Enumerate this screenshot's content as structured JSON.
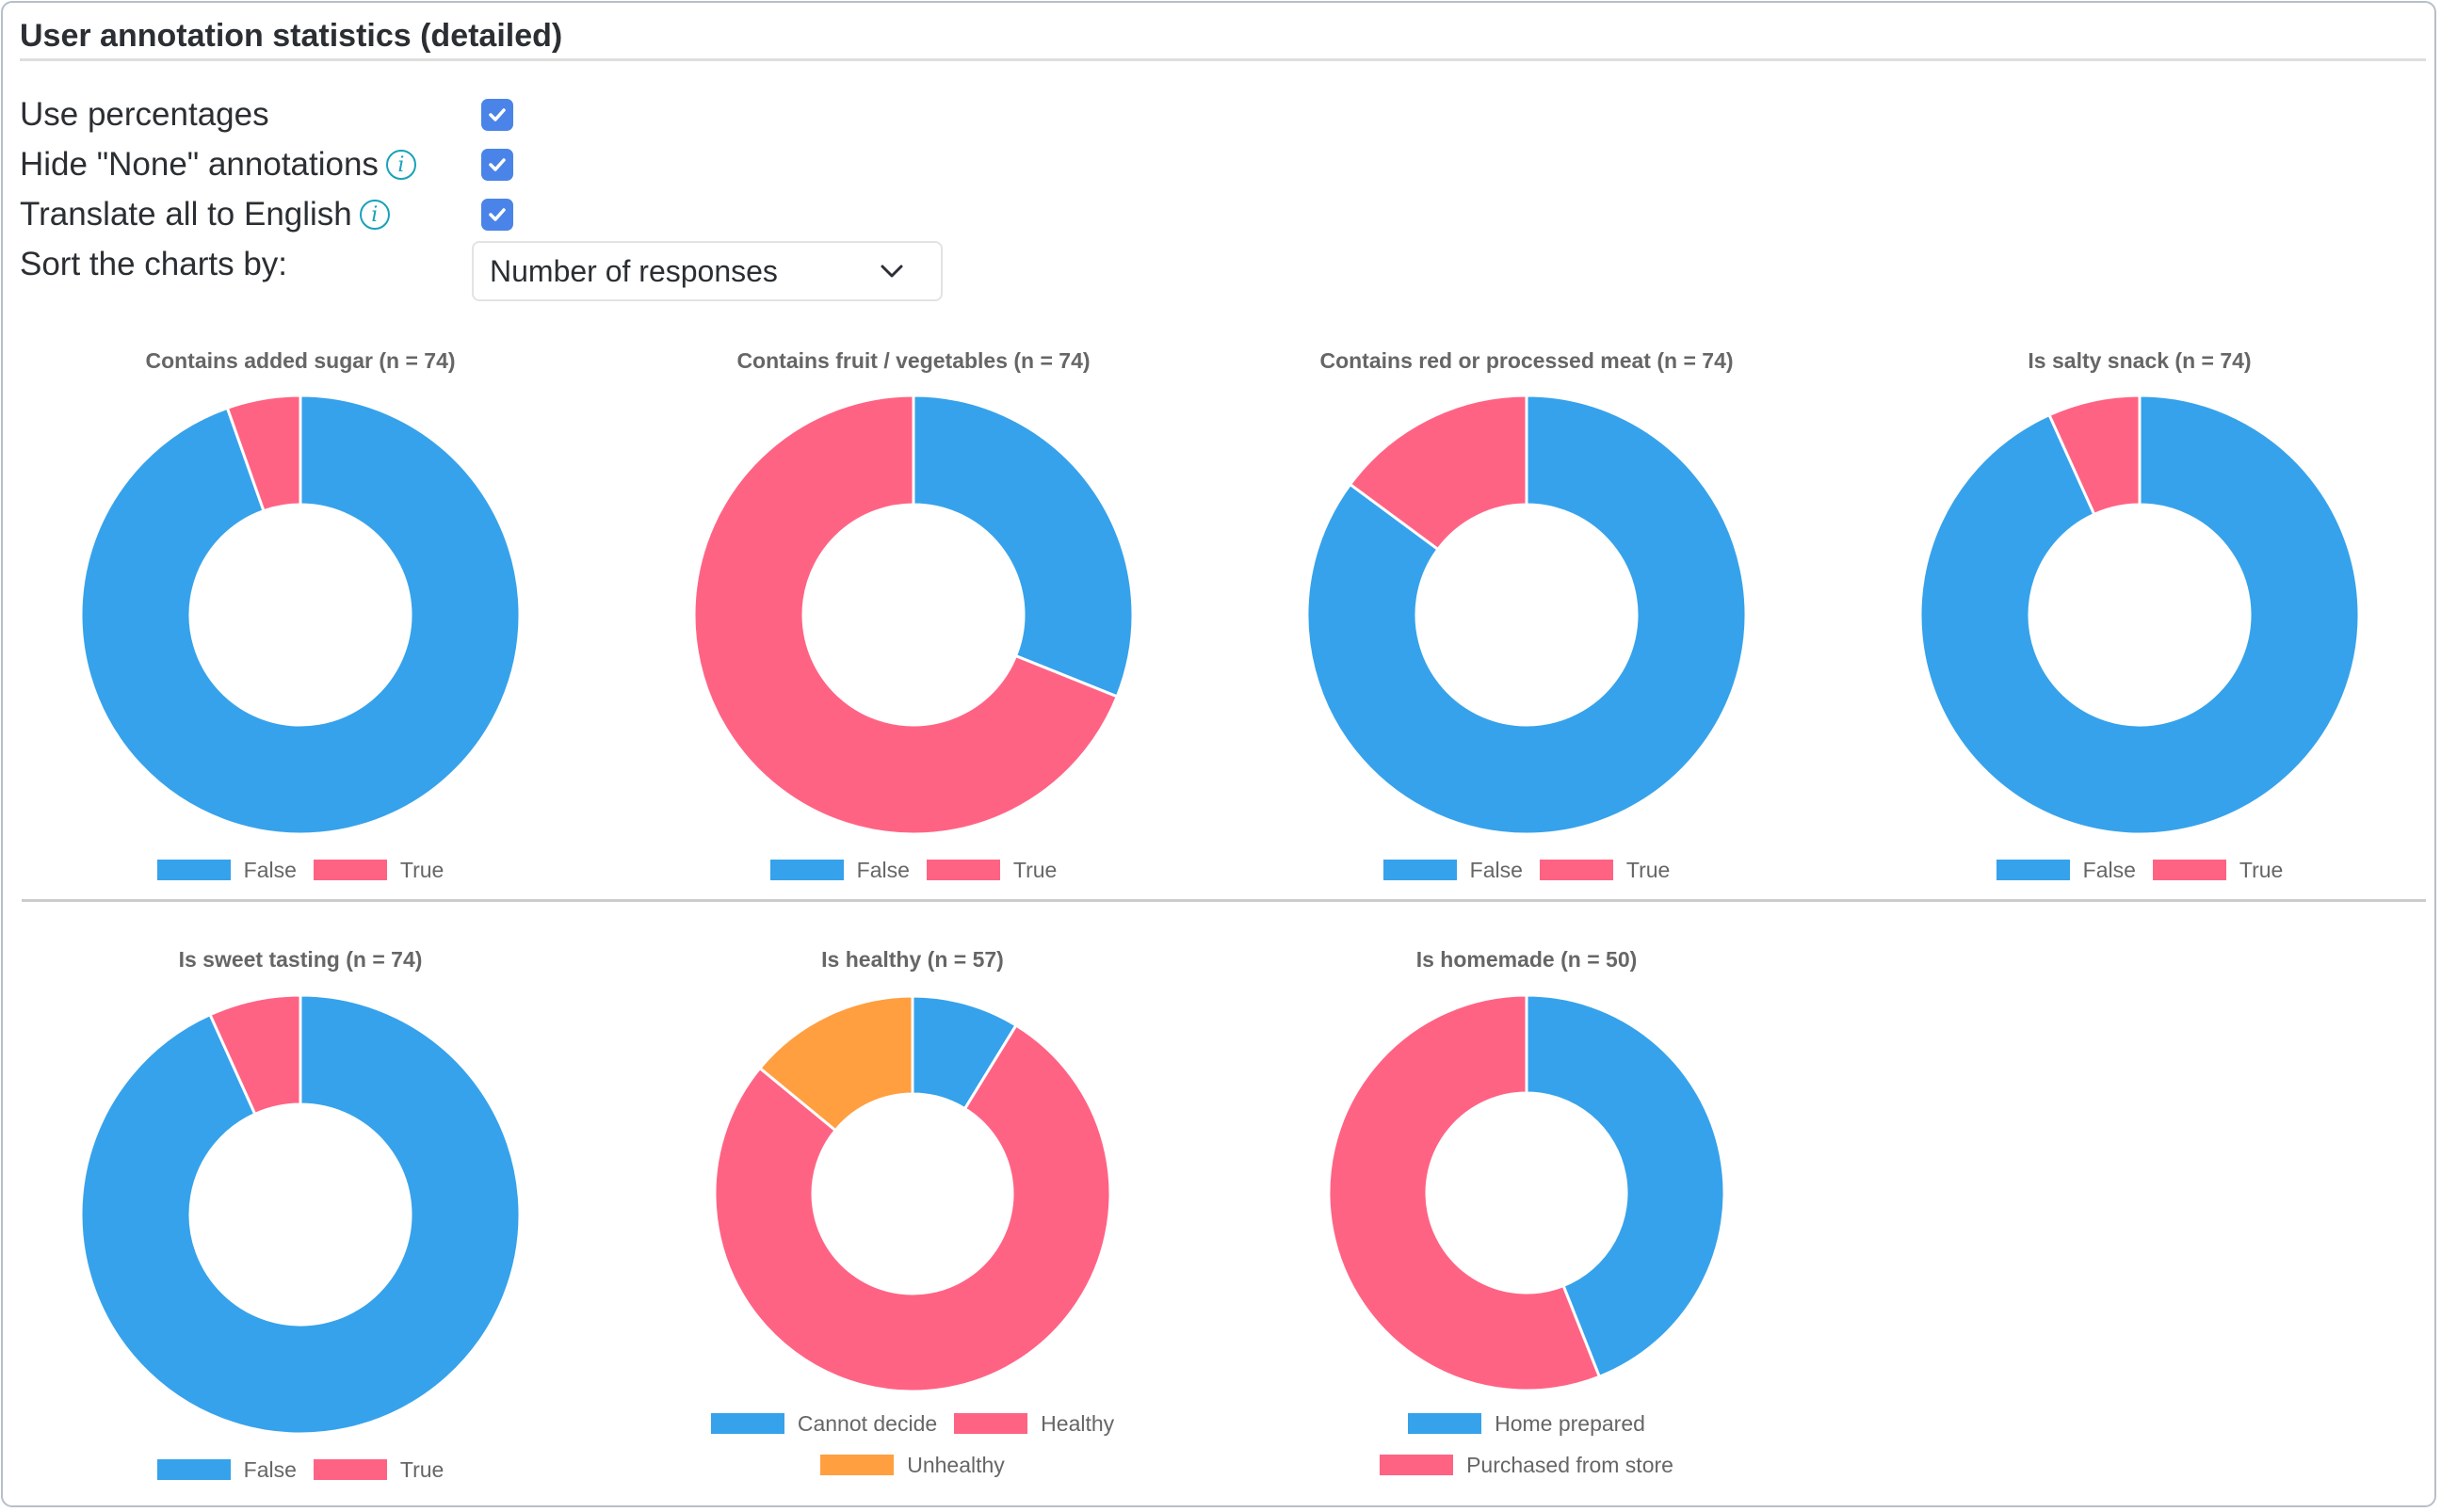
{
  "header": {
    "title": "User annotation statistics (detailed)"
  },
  "options": [
    {
      "label": "Use percentages",
      "info": false,
      "checked": true
    },
    {
      "label": "Hide \"None\" annotations",
      "info": true,
      "checked": true
    },
    {
      "label": "Translate all to English",
      "info": true,
      "checked": true
    }
  ],
  "sort": {
    "label": "Sort the charts by:",
    "selected": "Number of responses"
  },
  "colors": {
    "blue": "#36a2eb",
    "pink": "#ff6384",
    "orange": "#ff9f40"
  },
  "chart_data": [
    {
      "type": "pie",
      "subtype": "doughnut",
      "title": "Contains added sugar (n = 74)",
      "labels": [
        "False",
        "True"
      ],
      "values": [
        70,
        4
      ],
      "colors": [
        "#36a2eb",
        "#ff6384"
      ],
      "legend": "bottom"
    },
    {
      "type": "pie",
      "subtype": "doughnut",
      "title": "Contains fruit / vegetables (n = 74)",
      "labels": [
        "False",
        "True"
      ],
      "values": [
        23,
        51
      ],
      "colors": [
        "#36a2eb",
        "#ff6384"
      ],
      "legend": "bottom"
    },
    {
      "type": "pie",
      "subtype": "doughnut",
      "title": "Contains red or processed meat (n = 74)",
      "labels": [
        "False",
        "True"
      ],
      "values": [
        63,
        11
      ],
      "colors": [
        "#36a2eb",
        "#ff6384"
      ],
      "legend": "bottom"
    },
    {
      "type": "pie",
      "subtype": "doughnut",
      "title": "Is salty snack (n = 74)",
      "labels": [
        "False",
        "True"
      ],
      "values": [
        69,
        5
      ],
      "colors": [
        "#36a2eb",
        "#ff6384"
      ],
      "legend": "bottom"
    },
    {
      "type": "pie",
      "subtype": "doughnut",
      "title": "Is sweet tasting (n = 74)",
      "labels": [
        "False",
        "True"
      ],
      "values": [
        69,
        5
      ],
      "colors": [
        "#36a2eb",
        "#ff6384"
      ],
      "legend": "bottom"
    },
    {
      "type": "pie",
      "subtype": "doughnut",
      "title": "Is healthy (n = 57)",
      "labels": [
        "Cannot decide",
        "Healthy",
        "Unhealthy"
      ],
      "values": [
        5,
        44,
        8
      ],
      "colors": [
        "#36a2eb",
        "#ff6384",
        "#ff9f40"
      ],
      "legend": "bottom"
    },
    {
      "type": "pie",
      "subtype": "doughnut",
      "title": "Is homemade (n = 50)",
      "labels": [
        "Home prepared",
        "Purchased from store"
      ],
      "values": [
        22,
        28
      ],
      "colors": [
        "#36a2eb",
        "#ff6384"
      ],
      "legend": "bottom"
    }
  ]
}
